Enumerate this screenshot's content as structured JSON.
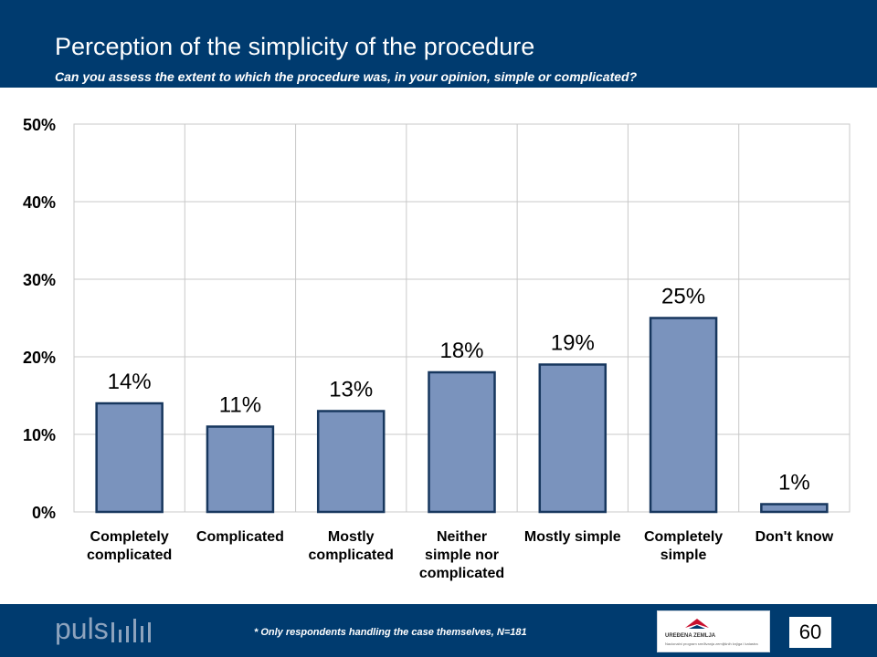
{
  "header": {
    "title": "Perception of the simplicity of the procedure",
    "subtitle": "Can you assess the extent to which the procedure was, in your opinion, simple or complicated?"
  },
  "footer": {
    "logo_text": "puls",
    "note": "* Only respondents handling the case themselves, N=181",
    "partner_logo": {
      "name": "UREĐENA ZEMLJA",
      "tagline": "Nacionalni program sređivanja zemljišnih knjiga i katastra"
    },
    "page_number": "60"
  },
  "chart_data": {
    "type": "bar",
    "categories": [
      [
        "Completely",
        "complicated"
      ],
      [
        "Complicated"
      ],
      [
        "Mostly",
        "complicated"
      ],
      [
        "Neither",
        "simple nor",
        "complicated"
      ],
      [
        "Mostly simple"
      ],
      [
        "Completely",
        "simple"
      ],
      [
        "Don't know"
      ]
    ],
    "values": [
      14,
      11,
      13,
      18,
      19,
      25,
      1
    ],
    "value_labels": [
      "14%",
      "11%",
      "13%",
      "18%",
      "19%",
      "25%",
      "1%"
    ],
    "ylim": [
      0,
      50
    ],
    "yticks": [
      0,
      10,
      20,
      30,
      40,
      50
    ],
    "ytick_labels": [
      "0%",
      "10%",
      "20%",
      "30%",
      "40%",
      "50%"
    ],
    "grid": true,
    "colors": {
      "bar_fill": "#7a93bd",
      "bar_stroke": "#17375e",
      "grid": "#c8c8c8",
      "header": "#003b6f"
    }
  }
}
